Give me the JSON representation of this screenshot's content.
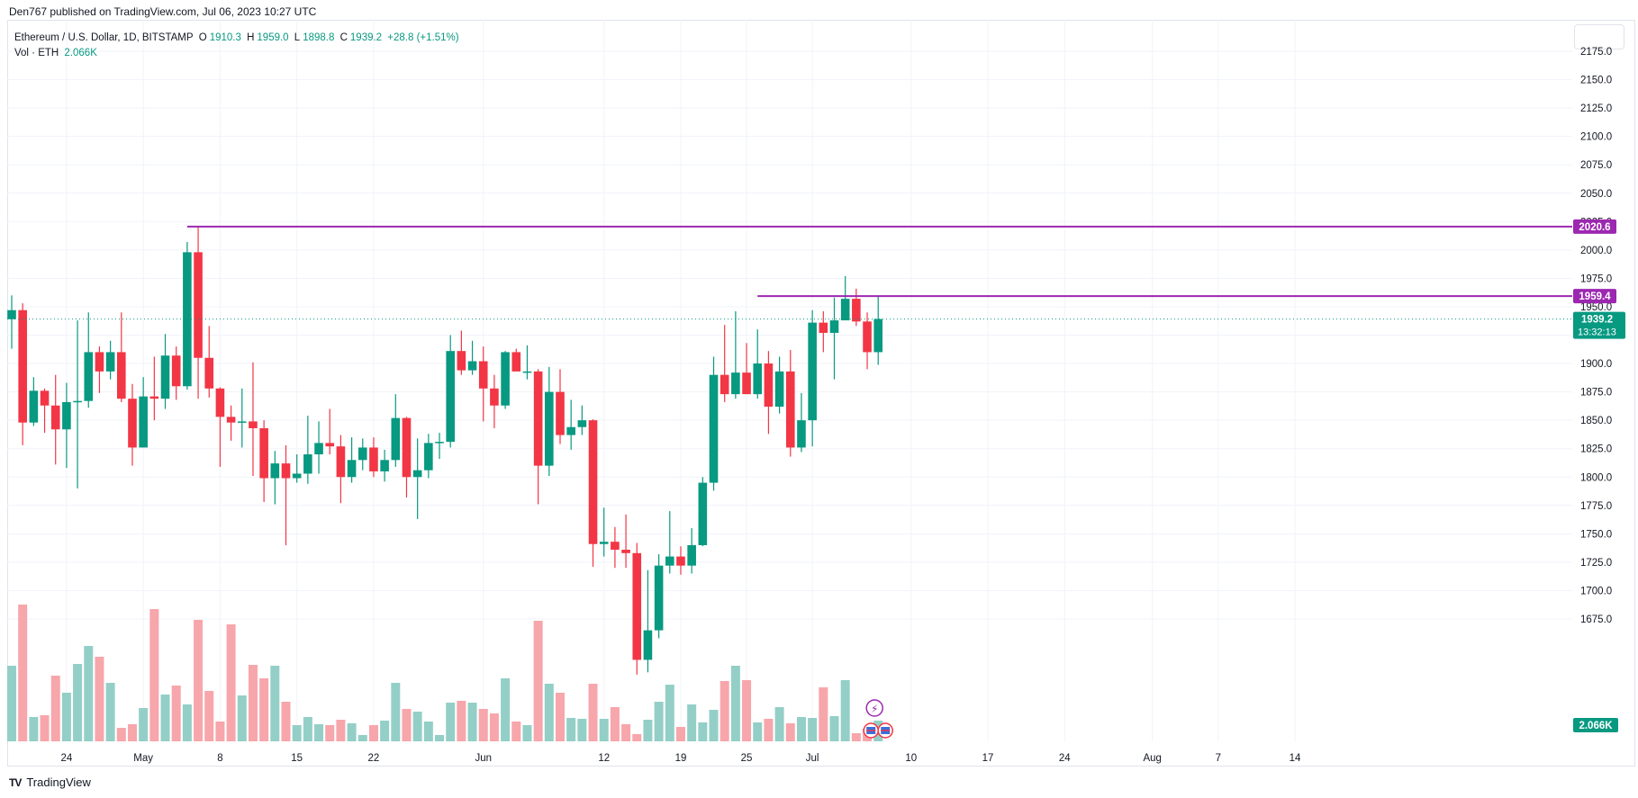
{
  "header": {
    "publisher_text": "Den767 published on TradingView.com, Jul 06, 2023 10:27 UTC"
  },
  "legend": {
    "symbol": "Ethereum / U.S. Dollar, 1D, BITSTAMP",
    "open_label": "O",
    "open": "1910.3",
    "high_label": "H",
    "high": "1959.0",
    "low_label": "L",
    "low": "1898.8",
    "close_label": "C",
    "close": "1939.2",
    "change": "+28.8 (+1.51%)",
    "volume_label": "Vol · ETH",
    "volume": "2.066K"
  },
  "footer": {
    "brand": "TradingView"
  },
  "colors": {
    "up": "#089981",
    "down": "#f23645",
    "up_vol": "#93cfc7",
    "down_vol": "#f7a6ab",
    "level": "#9c27b0",
    "grid": "#f0f3fa",
    "axis_text": "#131722"
  },
  "chart_data": {
    "type": "candlestick",
    "y_axis": {
      "ticks": [
        1675,
        1700,
        1725,
        1750,
        1775,
        1800,
        1825,
        1850,
        1875,
        1900,
        1925,
        1950,
        1975,
        2000,
        2025,
        2050,
        2075,
        2100,
        2125,
        2150,
        2175
      ],
      "range": [
        1655,
        2200
      ]
    },
    "x_axis": {
      "labels": [
        "24",
        "May",
        "8",
        "15",
        "22",
        "Jun",
        "12",
        "19",
        "25",
        "Jul",
        "10",
        "17",
        "24",
        "Aug",
        "7",
        "14"
      ],
      "label_dates": [
        "2023-04-24",
        "2023-05-01",
        "2023-05-08",
        "2023-05-15",
        "2023-05-22",
        "2023-06-01",
        "2023-06-12",
        "2023-06-19",
        "2023-06-25",
        "2023-07-01",
        "2023-07-10",
        "2023-07-17",
        "2023-07-24",
        "2023-08-01",
        "2023-08-07",
        "2023-08-14"
      ]
    },
    "first_candle_date": "2023-04-19",
    "candles": [
      {
        "o": 1939,
        "h": 1960,
        "l": 1913,
        "c": 1947
      },
      {
        "o": 1947,
        "h": 1953,
        "l": 1828,
        "c": 1848
      },
      {
        "o": 1848,
        "h": 1888,
        "l": 1845,
        "c": 1876
      },
      {
        "o": 1876,
        "h": 1878,
        "l": 1839,
        "c": 1863
      },
      {
        "o": 1863,
        "h": 1890,
        "l": 1811,
        "c": 1842
      },
      {
        "o": 1842,
        "h": 1883,
        "l": 1808,
        "c": 1866
      },
      {
        "o": 1866,
        "h": 1938,
        "l": 1790,
        "c": 1867
      },
      {
        "o": 1867,
        "h": 1945,
        "l": 1861,
        "c": 1910
      },
      {
        "o": 1910,
        "h": 1915,
        "l": 1874,
        "c": 1893
      },
      {
        "o": 1893,
        "h": 1920,
        "l": 1886,
        "c": 1910
      },
      {
        "o": 1910,
        "h": 1945,
        "l": 1866,
        "c": 1869
      },
      {
        "o": 1869,
        "h": 1882,
        "l": 1810,
        "c": 1826
      },
      {
        "o": 1826,
        "h": 1888,
        "l": 1826,
        "c": 1871
      },
      {
        "o": 1871,
        "h": 1906,
        "l": 1850,
        "c": 1869
      },
      {
        "o": 1869,
        "h": 1926,
        "l": 1860,
        "c": 1907
      },
      {
        "o": 1907,
        "h": 1915,
        "l": 1868,
        "c": 1880
      },
      {
        "o": 1880,
        "h": 2007,
        "l": 1877,
        "c": 1998
      },
      {
        "o": 1998,
        "h": 2020.6,
        "l": 1869,
        "c": 1905
      },
      {
        "o": 1905,
        "h": 1933,
        "l": 1870,
        "c": 1878
      },
      {
        "o": 1878,
        "h": 1879,
        "l": 1809,
        "c": 1853
      },
      {
        "o": 1853,
        "h": 1863,
        "l": 1832,
        "c": 1848
      },
      {
        "o": 1848,
        "h": 1878,
        "l": 1826,
        "c": 1849
      },
      {
        "o": 1849,
        "h": 1901,
        "l": 1801,
        "c": 1843
      },
      {
        "o": 1843,
        "h": 1850,
        "l": 1778,
        "c": 1799
      },
      {
        "o": 1799,
        "h": 1823,
        "l": 1776,
        "c": 1812
      },
      {
        "o": 1812,
        "h": 1828,
        "l": 1740,
        "c": 1799
      },
      {
        "o": 1799,
        "h": 1820,
        "l": 1795,
        "c": 1803
      },
      {
        "o": 1803,
        "h": 1854,
        "l": 1794,
        "c": 1820
      },
      {
        "o": 1820,
        "h": 1849,
        "l": 1803,
        "c": 1830
      },
      {
        "o": 1830,
        "h": 1860,
        "l": 1820,
        "c": 1827
      },
      {
        "o": 1827,
        "h": 1837,
        "l": 1777,
        "c": 1800
      },
      {
        "o": 1800,
        "h": 1835,
        "l": 1795,
        "c": 1815
      },
      {
        "o": 1815,
        "h": 1834,
        "l": 1806,
        "c": 1826
      },
      {
        "o": 1826,
        "h": 1835,
        "l": 1800,
        "c": 1805
      },
      {
        "o": 1805,
        "h": 1824,
        "l": 1796,
        "c": 1815
      },
      {
        "o": 1815,
        "h": 1873,
        "l": 1809,
        "c": 1852
      },
      {
        "o": 1852,
        "h": 1853,
        "l": 1782,
        "c": 1800
      },
      {
        "o": 1800,
        "h": 1834,
        "l": 1763,
        "c": 1806
      },
      {
        "o": 1806,
        "h": 1838,
        "l": 1799,
        "c": 1830
      },
      {
        "o": 1830,
        "h": 1839,
        "l": 1816,
        "c": 1831
      },
      {
        "o": 1831,
        "h": 1925,
        "l": 1826,
        "c": 1911
      },
      {
        "o": 1911,
        "h": 1929,
        "l": 1890,
        "c": 1894
      },
      {
        "o": 1894,
        "h": 1920,
        "l": 1890,
        "c": 1902
      },
      {
        "o": 1902,
        "h": 1915,
        "l": 1849,
        "c": 1878
      },
      {
        "o": 1878,
        "h": 1890,
        "l": 1843,
        "c": 1863
      },
      {
        "o": 1863,
        "h": 1911,
        "l": 1860,
        "c": 1910
      },
      {
        "o": 1910,
        "h": 1913,
        "l": 1895,
        "c": 1893
      },
      {
        "o": 1893,
        "h": 1916,
        "l": 1886,
        "c": 1893
      },
      {
        "o": 1893,
        "h": 1895,
        "l": 1776,
        "c": 1810
      },
      {
        "o": 1810,
        "h": 1897,
        "l": 1801,
        "c": 1875
      },
      {
        "o": 1875,
        "h": 1895,
        "l": 1829,
        "c": 1837
      },
      {
        "o": 1837,
        "h": 1868,
        "l": 1824,
        "c": 1844
      },
      {
        "o": 1844,
        "h": 1863,
        "l": 1837,
        "c": 1850
      },
      {
        "o": 1850,
        "h": 1851,
        "l": 1721,
        "c": 1741
      },
      {
        "o": 1741,
        "h": 1773,
        "l": 1730,
        "c": 1743
      },
      {
        "o": 1743,
        "h": 1756,
        "l": 1720,
        "c": 1736
      },
      {
        "o": 1736,
        "h": 1767,
        "l": 1720,
        "c": 1733
      },
      {
        "o": 1733,
        "h": 1742,
        "l": 1626,
        "c": 1639
      },
      {
        "o": 1639,
        "h": 1718,
        "l": 1628,
        "c": 1665
      },
      {
        "o": 1665,
        "h": 1732,
        "l": 1658,
        "c": 1722
      },
      {
        "o": 1722,
        "h": 1770,
        "l": 1715,
        "c": 1730
      },
      {
        "o": 1730,
        "h": 1739,
        "l": 1714,
        "c": 1722
      },
      {
        "o": 1722,
        "h": 1755,
        "l": 1715,
        "c": 1740
      },
      {
        "o": 1740,
        "h": 1800,
        "l": 1739,
        "c": 1795
      },
      {
        "o": 1795,
        "h": 1906,
        "l": 1788,
        "c": 1890
      },
      {
        "o": 1890,
        "h": 1934,
        "l": 1866,
        "c": 1873
      },
      {
        "o": 1873,
        "h": 1946,
        "l": 1869,
        "c": 1892
      },
      {
        "o": 1892,
        "h": 1918,
        "l": 1873,
        "c": 1873
      },
      {
        "o": 1873,
        "h": 1930,
        "l": 1869,
        "c": 1900
      },
      {
        "o": 1900,
        "h": 1911,
        "l": 1838,
        "c": 1862
      },
      {
        "o": 1862,
        "h": 1906,
        "l": 1856,
        "c": 1893
      },
      {
        "o": 1893,
        "h": 1912,
        "l": 1818,
        "c": 1826
      },
      {
        "o": 1826,
        "h": 1874,
        "l": 1822,
        "c": 1850
      },
      {
        "o": 1850,
        "h": 1947,
        "l": 1827,
        "c": 1936
      },
      {
        "o": 1936,
        "h": 1946,
        "l": 1910,
        "c": 1927
      },
      {
        "o": 1927,
        "h": 1958,
        "l": 1886,
        "c": 1938
      },
      {
        "o": 1938,
        "h": 1977,
        "l": 1942,
        "c": 1957
      },
      {
        "o": 1957,
        "h": 1966,
        "l": 1933,
        "c": 1937
      },
      {
        "o": 1937,
        "h": 1945,
        "l": 1895,
        "c": 1910
      },
      {
        "o": 1910,
        "h": 1959,
        "l": 1898.8,
        "c": 1939.2
      }
    ],
    "volume_heights_px": [],
    "volumes": [
      84,
      152,
      27,
      29,
      73,
      54,
      86,
      106,
      94,
      65,
      15,
      19,
      37,
      147,
      52,
      62,
      41,
      135,
      56,
      22,
      130,
      51,
      85,
      70,
      84,
      44,
      18,
      27,
      19,
      18,
      24,
      20,
      7,
      18,
      23,
      65,
      36,
      33,
      22,
      7,
      43,
      45,
      43,
      36,
      31,
      70,
      22,
      18,
      134,
      64,
      54,
      26,
      25,
      64,
      25,
      38,
      19,
      8,
      24,
      44,
      63,
      16,
      41,
      21,
      35,
      67,
      84,
      68,
      21,
      25,
      38,
      20,
      27,
      26,
      60,
      28,
      68,
      9,
      14,
      23
    ],
    "levels": [
      {
        "value": 2020.6,
        "label": "2020.6",
        "from_index": 16
      },
      {
        "value": 1959.4,
        "label": "1959.4",
        "from_index": 68
      }
    ],
    "last_price": {
      "value": 1939.2,
      "label": "1939.2",
      "countdown": "13:32:13"
    },
    "volume_badge": "2.066K"
  }
}
